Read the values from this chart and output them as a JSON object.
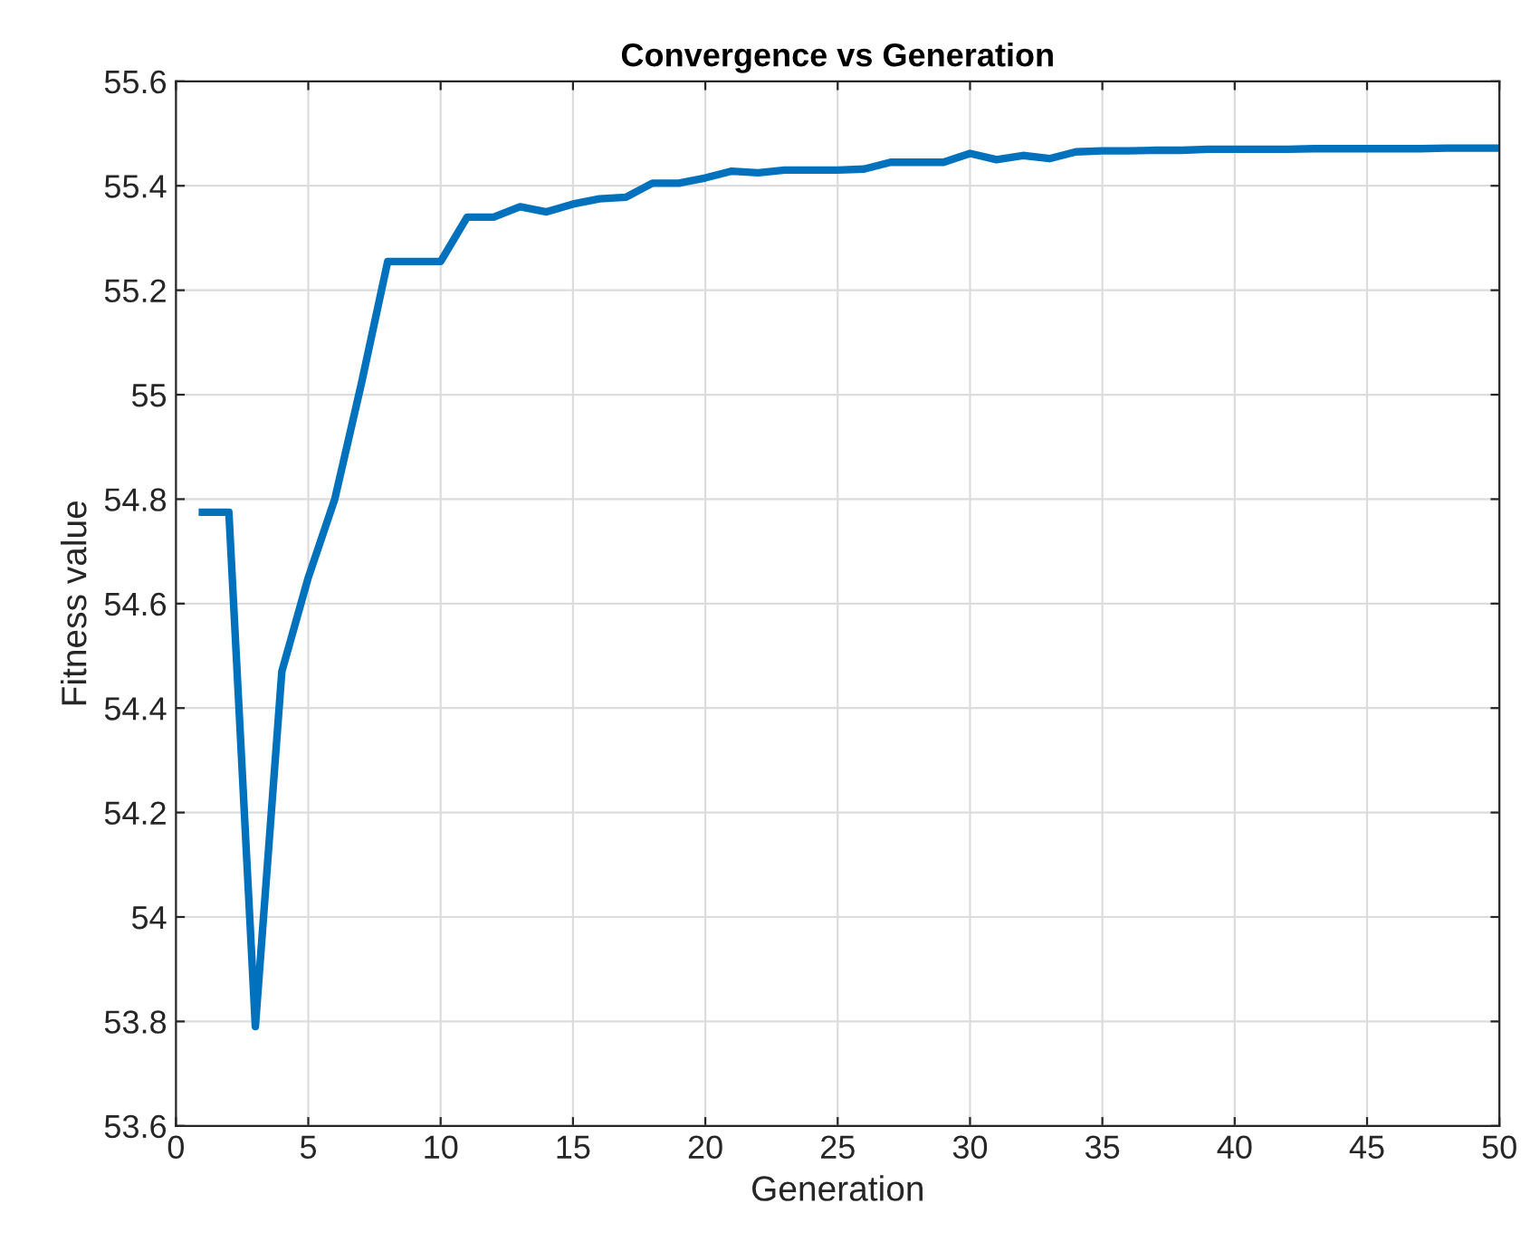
{
  "chart_data": {
    "type": "line",
    "title": "Convergence vs Generation",
    "xlabel": "Generation",
    "ylabel": "Fitness value",
    "x": [
      1,
      2,
      3,
      4,
      5,
      6,
      7,
      8,
      9,
      10,
      11,
      12,
      13,
      14,
      15,
      16,
      17,
      18,
      19,
      20,
      21,
      22,
      23,
      24,
      25,
      26,
      27,
      28,
      29,
      30,
      31,
      32,
      33,
      34,
      35,
      36,
      37,
      38,
      39,
      40,
      41,
      42,
      43,
      44,
      45,
      46,
      47,
      48,
      49,
      50
    ],
    "series": [
      {
        "color": "#0072bd",
        "values": [
          54.775,
          54.775,
          53.79,
          54.47,
          54.65,
          54.8,
          55.02,
          55.255,
          55.255,
          55.255,
          55.34,
          55.34,
          55.36,
          55.35,
          55.365,
          55.375,
          55.378,
          55.405,
          55.405,
          55.415,
          55.428,
          55.425,
          55.43,
          55.43,
          55.43,
          55.432,
          55.445,
          55.445,
          55.445,
          55.462,
          55.45,
          55.458,
          55.452,
          55.465,
          55.467,
          55.467,
          55.468,
          55.468,
          55.47,
          55.47,
          55.47,
          55.47,
          55.471,
          55.471,
          55.471,
          55.471,
          55.471,
          55.472,
          55.472,
          55.472
        ]
      }
    ],
    "xlim": [
      0,
      50
    ],
    "xticks": [
      0,
      5,
      10,
      15,
      20,
      25,
      30,
      35,
      40,
      45,
      50
    ],
    "ylim": [
      53.6,
      55.6
    ],
    "yticks": [
      53.6,
      53.8,
      54,
      54.2,
      54.4,
      54.6,
      54.8,
      55,
      55.2,
      55.4,
      55.6
    ],
    "grid": true,
    "marker": "none",
    "line_style": "solid"
  }
}
